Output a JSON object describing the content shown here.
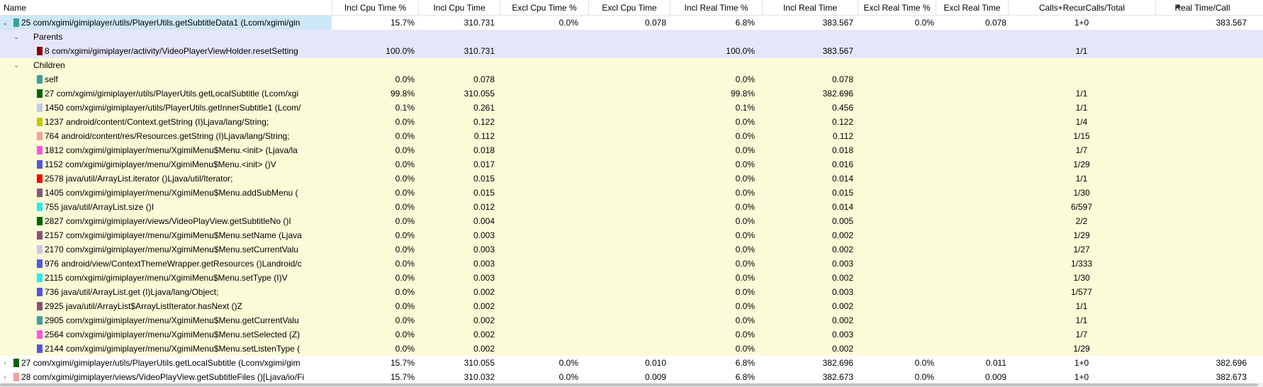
{
  "headers": [
    "Name",
    "Incl Cpu Time %",
    "Incl Cpu Time",
    "Excl Cpu Time %",
    "Excl Cpu Time",
    "Incl Real Time %",
    "Incl Real Time",
    "Excl Real Time %",
    "Excl Real Time",
    "Calls+RecurCalls/Total",
    "Real Time/Call"
  ],
  "colors": {
    "selected_bg": "#e6e6fa",
    "child_bg": "#fbfbd8",
    "highlight": "#cde8f6"
  },
  "rows": [
    {
      "kind": "top",
      "toggle": "⌄",
      "swatch": "#3aa0a0",
      "name": "25 com/xgimi/gimiplayer/utils/PlayerUtils.getSubtitleData1 (Lcom/xgimi/gin",
      "v": [
        "15.7%",
        "310.731",
        "0.0%",
        "0.078",
        "6.8%",
        "383.567",
        "0.0%",
        "0.078",
        "1+0",
        "383.567"
      ]
    },
    {
      "kind": "sel",
      "toggle": "⌄",
      "name": "Parents",
      "v": [
        "",
        "",
        "",
        "",
        "",
        "",
        "",
        "",
        "",
        ""
      ]
    },
    {
      "kind": "sel",
      "swatch": "#8b0000",
      "name": "8 com/xgimi/gimiplayer/activity/VideoPlayerViewHolder.resetSetting",
      "v": [
        "100.0%",
        "310.731",
        "",
        "",
        "100.0%",
        "383.567",
        "",
        "",
        "1/1",
        ""
      ]
    },
    {
      "kind": "child",
      "toggle": "⌄",
      "name": "Children",
      "v": [
        "",
        "",
        "",
        "",
        "",
        "",
        "",
        "",
        "",
        ""
      ]
    },
    {
      "kind": "child",
      "swatch": "#3aa0a0",
      "name": "self",
      "v": [
        "0.0%",
        "0.078",
        "",
        "",
        "0.0%",
        "0.078",
        "",
        "",
        "",
        ""
      ]
    },
    {
      "kind": "child",
      "swatch": "#006400",
      "name": "27 com/xgimi/gimiplayer/utils/PlayerUtils.getLocalSubtitle (Lcom/xgi",
      "v": [
        "99.8%",
        "310.055",
        "",
        "",
        "99.8%",
        "382.696",
        "",
        "",
        "1/1",
        ""
      ]
    },
    {
      "kind": "child",
      "swatch": "#c8c8e8",
      "name": "1450 com/xgimi/gimiplayer/utils/PlayerUtils.getInnerSubtitle1 (Lcom/",
      "v": [
        "0.1%",
        "0.261",
        "",
        "",
        "0.1%",
        "0.456",
        "",
        "",
        "1/1",
        ""
      ]
    },
    {
      "kind": "child",
      "swatch": "#c8c800",
      "name": "1237 android/content/Context.getString (I)Ljava/lang/String;",
      "v": [
        "0.0%",
        "0.122",
        "",
        "",
        "0.0%",
        "0.122",
        "",
        "",
        "1/4",
        ""
      ]
    },
    {
      "kind": "child",
      "swatch": "#f4a0a0",
      "name": "764 android/content/res/Resources.getString (I)Ljava/lang/String;",
      "v": [
        "0.0%",
        "0.112",
        "",
        "",
        "0.0%",
        "0.112",
        "",
        "",
        "1/15",
        ""
      ]
    },
    {
      "kind": "child",
      "swatch": "#ff55dd",
      "name": "1812 com/xgimi/gimiplayer/menu/XgimiMenu$Menu.<init> (Ljava/la",
      "v": [
        "0.0%",
        "0.018",
        "",
        "",
        "0.0%",
        "0.018",
        "",
        "",
        "1/7",
        ""
      ]
    },
    {
      "kind": "child",
      "swatch": "#5555dd",
      "name": "1152 com/xgimi/gimiplayer/menu/XgimiMenu$Menu.<init> ()V",
      "v": [
        "0.0%",
        "0.017",
        "",
        "",
        "0.0%",
        "0.016",
        "",
        "",
        "1/29",
        ""
      ]
    },
    {
      "kind": "child",
      "swatch": "#ff0000",
      "name": "2578 java/util/ArrayList.iterator ()Ljava/util/Iterator;",
      "v": [
        "0.0%",
        "0.015",
        "",
        "",
        "0.0%",
        "0.014",
        "",
        "",
        "1/1",
        ""
      ]
    },
    {
      "kind": "child",
      "swatch": "#885577",
      "name": "1405 com/xgimi/gimiplayer/menu/XgimiMenu$Menu.addSubMenu (",
      "v": [
        "0.0%",
        "0.015",
        "",
        "",
        "0.0%",
        "0.015",
        "",
        "",
        "1/30",
        ""
      ]
    },
    {
      "kind": "child",
      "swatch": "#22eeee",
      "name": "755 java/util/ArrayList.size ()I",
      "v": [
        "0.0%",
        "0.012",
        "",
        "",
        "0.0%",
        "0.014",
        "",
        "",
        "6/597",
        ""
      ]
    },
    {
      "kind": "child",
      "swatch": "#006400",
      "name": "2827 com/xgimi/gimiplayer/views/VideoPlayView.getSubtitleNo ()I",
      "v": [
        "0.0%",
        "0.004",
        "",
        "",
        "0.0%",
        "0.005",
        "",
        "",
        "2/2",
        ""
      ]
    },
    {
      "kind": "child",
      "swatch": "#885577",
      "name": "2157 com/xgimi/gimiplayer/menu/XgimiMenu$Menu.setName (Ljava",
      "v": [
        "0.0%",
        "0.003",
        "",
        "",
        "0.0%",
        "0.002",
        "",
        "",
        "1/29",
        ""
      ]
    },
    {
      "kind": "child",
      "swatch": "#c8c8e8",
      "name": "2170 com/xgimi/gimiplayer/menu/XgimiMenu$Menu.setCurrentValu",
      "v": [
        "0.0%",
        "0.003",
        "",
        "",
        "0.0%",
        "0.002",
        "",
        "",
        "1/27",
        ""
      ]
    },
    {
      "kind": "child",
      "swatch": "#5555dd",
      "name": "976 android/view/ContextThemeWrapper.getResources ()Landroid/c",
      "v": [
        "0.0%",
        "0.003",
        "",
        "",
        "0.0%",
        "0.003",
        "",
        "",
        "1/333",
        ""
      ]
    },
    {
      "kind": "child",
      "swatch": "#22eeee",
      "name": "2115 com/xgimi/gimiplayer/menu/XgimiMenu$Menu.setType (I)V",
      "v": [
        "0.0%",
        "0.003",
        "",
        "",
        "0.0%",
        "0.002",
        "",
        "",
        "1/30",
        ""
      ]
    },
    {
      "kind": "child",
      "swatch": "#5555dd",
      "name": "736 java/util/ArrayList.get (I)Ljava/lang/Object;",
      "v": [
        "0.0%",
        "0.002",
        "",
        "",
        "0.0%",
        "0.003",
        "",
        "",
        "1/577",
        ""
      ]
    },
    {
      "kind": "child",
      "swatch": "#885577",
      "name": "2925 java/util/ArrayList$ArrayListIterator.hasNext ()Z",
      "v": [
        "0.0%",
        "0.002",
        "",
        "",
        "0.0%",
        "0.002",
        "",
        "",
        "1/1",
        ""
      ]
    },
    {
      "kind": "child",
      "swatch": "#3aa0a0",
      "name": "2905 com/xgimi/gimiplayer/menu/XgimiMenu$Menu.getCurrentValu",
      "v": [
        "0.0%",
        "0.002",
        "",
        "",
        "0.0%",
        "0.002",
        "",
        "",
        "1/1",
        ""
      ]
    },
    {
      "kind": "child",
      "swatch": "#ff55dd",
      "name": "2564 com/xgimi/gimiplayer/menu/XgimiMenu$Menu.setSelected (Z)",
      "v": [
        "0.0%",
        "0.002",
        "",
        "",
        "0.0%",
        "0.003",
        "",
        "",
        "1/7",
        ""
      ]
    },
    {
      "kind": "child",
      "swatch": "#5555dd",
      "name": "2144 com/xgimi/gimiplayer/menu/XgimiMenu$Menu.setListenType (",
      "v": [
        "0.0%",
        "0.002",
        "",
        "",
        "0.0%",
        "0.002",
        "",
        "",
        "1/29",
        ""
      ]
    },
    {
      "kind": "top",
      "toggle": "›",
      "swatch": "#006400",
      "name": "27 com/xgimi/gimiplayer/utils/PlayerUtils.getLocalSubtitle (Lcom/xgimi/gim",
      "v": [
        "15.7%",
        "310.055",
        "0.0%",
        "0.010",
        "6.8%",
        "382.696",
        "0.0%",
        "0.011",
        "1+0",
        "382.696"
      ]
    },
    {
      "kind": "top",
      "toggle": "›",
      "swatch": "#f4a0a0",
      "name": "28 com/xgimi/gimiplayer/views/VideoPlayView.getSubtitleFiles ()[Ljava/io/Fi",
      "v": [
        "15.7%",
        "310.032",
        "0.0%",
        "0.009",
        "6.8%",
        "382.673",
        "0.0%",
        "0.009",
        "1+0",
        "382.673"
      ]
    }
  ]
}
